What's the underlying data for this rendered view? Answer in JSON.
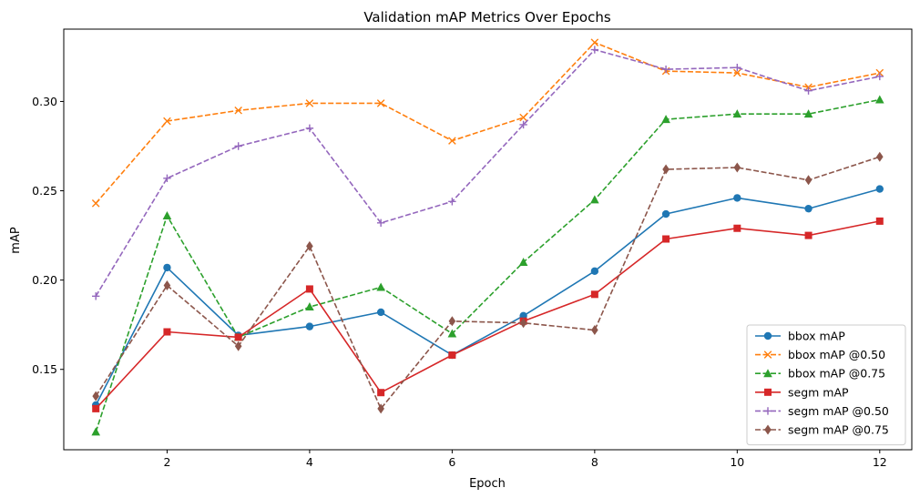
{
  "chart_data": {
    "type": "line",
    "title": "Validation mAP Metrics Over Epochs",
    "xlabel": "Epoch",
    "ylabel": "mAP",
    "x": [
      1,
      2,
      3,
      4,
      5,
      6,
      7,
      8,
      9,
      10,
      11,
      12
    ],
    "xticks": [
      "2",
      "4",
      "6",
      "8",
      "10",
      "12"
    ],
    "xtick_values": [
      2,
      4,
      6,
      8,
      10,
      12
    ],
    "yticks": [
      "0.15",
      "0.20",
      "0.25",
      "0.30"
    ],
    "ytick_values": [
      0.15,
      0.2,
      0.25,
      0.3
    ],
    "xlim": [
      0.55,
      12.45
    ],
    "ylim": [
      0.105,
      0.3405
    ],
    "grid": false,
    "legend_position": "lower-right",
    "series": [
      {
        "name": "bbox mAP",
        "color": "#1f77b4",
        "dash": "solid",
        "marker": "circle",
        "values": [
          0.13,
          0.207,
          0.169,
          0.174,
          0.182,
          0.158,
          0.18,
          0.205,
          0.237,
          0.246,
          0.24,
          0.251
        ]
      },
      {
        "name": "bbox mAP @0.50",
        "color": "#ff7f0e",
        "dash": "dashed",
        "marker": "x",
        "values": [
          0.243,
          0.289,
          0.295,
          0.299,
          0.299,
          0.278,
          0.291,
          0.333,
          0.317,
          0.316,
          0.308,
          0.316
        ]
      },
      {
        "name": "bbox mAP @0.75",
        "color": "#2ca02c",
        "dash": "dashed",
        "marker": "triangle",
        "values": [
          0.115,
          0.236,
          0.168,
          0.185,
          0.196,
          0.17,
          0.21,
          0.245,
          0.29,
          0.293,
          0.293,
          0.301
        ]
      },
      {
        "name": "segm mAP",
        "color": "#d62728",
        "dash": "solid",
        "marker": "square",
        "values": [
          0.128,
          0.171,
          0.168,
          0.195,
          0.137,
          0.158,
          0.177,
          0.192,
          0.223,
          0.229,
          0.225,
          0.233
        ]
      },
      {
        "name": "segm mAP @0.50",
        "color": "#9467bd",
        "dash": "dashed",
        "marker": "plus",
        "values": [
          0.191,
          0.257,
          0.275,
          0.285,
          0.232,
          0.244,
          0.287,
          0.329,
          0.318,
          0.319,
          0.306,
          0.314
        ]
      },
      {
        "name": "segm mAP @0.75",
        "color": "#8c564b",
        "dash": "dashed",
        "marker": "diamond",
        "values": [
          0.135,
          0.197,
          0.163,
          0.219,
          0.128,
          0.177,
          0.176,
          0.172,
          0.262,
          0.263,
          0.256,
          0.269
        ]
      }
    ]
  }
}
